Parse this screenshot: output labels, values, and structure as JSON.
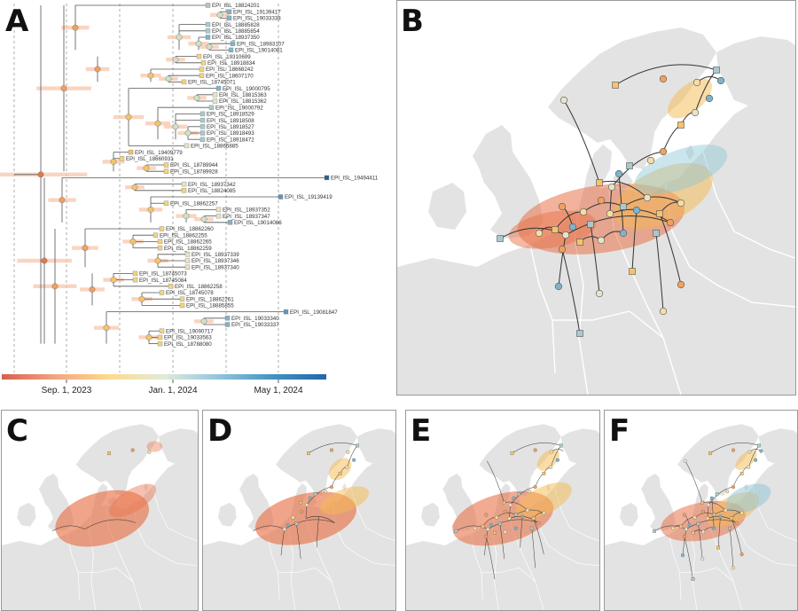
{
  "figure": {
    "panels": [
      {
        "letter": "A",
        "kind": "time-scaled phylogeny"
      },
      {
        "letter": "B",
        "kind": "map"
      },
      {
        "letter": "C",
        "kind": "map"
      },
      {
        "letter": "D",
        "kind": "map"
      },
      {
        "letter": "E",
        "kind": "map"
      },
      {
        "letter": "F",
        "kind": "map"
      }
    ]
  },
  "tree": {
    "tips": [
      {
        "id": "EPI_ISL_18824201",
        "color": "#bdbdbd"
      },
      {
        "id": "EPI_ISL_19139417",
        "color": "#7fb3c9"
      },
      {
        "id": "EPI_ISL_19033338",
        "color": "#7fb3c9"
      },
      {
        "id": "EPI_ISL_18885828",
        "color": "#a9c9cf"
      },
      {
        "id": "EPI_ISL_18885854",
        "color": "#a9c9cf"
      },
      {
        "id": "EPI_ISL_18937350",
        "color": "#7fb3c9"
      },
      {
        "id": "EPI_ISL_18983107",
        "color": "#7fb3c9"
      },
      {
        "id": "EPI_ISL_19014081",
        "color": "#7fb3c9"
      },
      {
        "id": "EPI_ISL_19310699",
        "color": "#f4d37e"
      },
      {
        "id": "EPI_ISL_18918834",
        "color": "#f4d37e"
      },
      {
        "id": "EPI_ISL_18668242",
        "color": "#f4d37e"
      },
      {
        "id": "EPI_ISL_18607170",
        "color": "#f4d37e"
      },
      {
        "id": "EPI_ISL_18745071",
        "color": "#f4d37e"
      },
      {
        "id": "EPI_ISL_19000795",
        "color": "#7fb3c9"
      },
      {
        "id": "EPI_ISL_18815363",
        "color": "#e8e3c8"
      },
      {
        "id": "EPI_ISL_18815362",
        "color": "#e8e3c8"
      },
      {
        "id": "EPI_ISL_19000792",
        "color": "#a9c9cf"
      },
      {
        "id": "EPI_ISL_18918529",
        "color": "#a9c9cf"
      },
      {
        "id": "EPI_ISL_18918508",
        "color": "#a9c9cf"
      },
      {
        "id": "EPI_ISL_18918527",
        "color": "#a9c9cf"
      },
      {
        "id": "EPI_ISL_18918493",
        "color": "#a9c9cf"
      },
      {
        "id": "EPI_ISL_18918472",
        "color": "#a9c9cf"
      },
      {
        "id": "EPI_ISL_18866885",
        "color": "#e8e3c8"
      },
      {
        "id": "EPI_ISL_19409779",
        "color": "#f0c060"
      },
      {
        "id": "EPI_ISL_18660931",
        "color": "#f4d37e"
      },
      {
        "id": "EPI_ISL_18789944",
        "color": "#f4d37e"
      },
      {
        "id": "EPI_ISL_18789928",
        "color": "#f4d37e"
      },
      {
        "id": "EPI_ISL_19494411",
        "color": "#2b5d87"
      },
      {
        "id": "EPI_ISL_18937342",
        "color": "#e8e3c8"
      },
      {
        "id": "EPI_ISL_18824085",
        "color": "#f4d37e"
      },
      {
        "id": "EPI_ISL_19139419",
        "color": "#5f95b6"
      },
      {
        "id": "EPI_ISL_18862257",
        "color": "#f4d37e"
      },
      {
        "id": "EPI_ISL_18937352",
        "color": "#e8e3c8"
      },
      {
        "id": "EPI_ISL_18937347",
        "color": "#e8e3c8"
      },
      {
        "id": "EPI_ISL_19014086",
        "color": "#7fb3c9"
      },
      {
        "id": "EPI_ISL_18862260",
        "color": "#f4d37e"
      },
      {
        "id": "EPI_ISL_18862255",
        "color": "#f4d37e"
      },
      {
        "id": "EPI_ISL_18862265",
        "color": "#f4d37e"
      },
      {
        "id": "EPI_ISL_18862259",
        "color": "#f4d37e"
      },
      {
        "id": "EPI_ISL_18937339",
        "color": "#e8e3c8"
      },
      {
        "id": "EPI_ISL_18937346",
        "color": "#e8e3c8"
      },
      {
        "id": "EPI_ISL_18937340",
        "color": "#e8e3c8"
      },
      {
        "id": "EPI_ISL_18745073",
        "color": "#f4d37e"
      },
      {
        "id": "EPI_ISL_18745084",
        "color": "#f4d37e"
      },
      {
        "id": "EPI_ISL_18862258",
        "color": "#f4d37e"
      },
      {
        "id": "EPI_ISL_18745078",
        "color": "#f4d37e"
      },
      {
        "id": "EPI_ISL_18862261",
        "color": "#f4d37e"
      },
      {
        "id": "EPI_ISL_18885855",
        "color": "#f4d37e"
      },
      {
        "id": "EPI_ISL_19081847",
        "color": "#5f95b6"
      },
      {
        "id": "EPI_ISL_19033340",
        "color": "#7fb3c9"
      },
      {
        "id": "EPI_ISL_19033337",
        "color": "#7fb3c9"
      },
      {
        "id": "EPI_ISL_19090717",
        "color": "#f4d37e"
      },
      {
        "id": "EPI_ISL_19033563",
        "color": "#f4d37e"
      },
      {
        "id": "EPI_ISL_18788080",
        "color": "#f4d37e"
      }
    ],
    "axis": {
      "ticks": [
        "Sep. 1, 2023",
        "Jan. 1, 2024",
        "May 1, 2024"
      ],
      "colorbar": [
        "#d6604d",
        "#f4a582",
        "#fddb8c",
        "#e0ecd8",
        "#92c5de",
        "#4393c3",
        "#2166ac"
      ]
    }
  },
  "colors": {
    "land": "#e3e3e3",
    "sea": "#ffffff",
    "border": "#ffffff",
    "hpd_early": "#e8734a",
    "hpd_mid": "#f5b94f",
    "hpd_late": "#8cc5d6",
    "path": "#333333"
  }
}
